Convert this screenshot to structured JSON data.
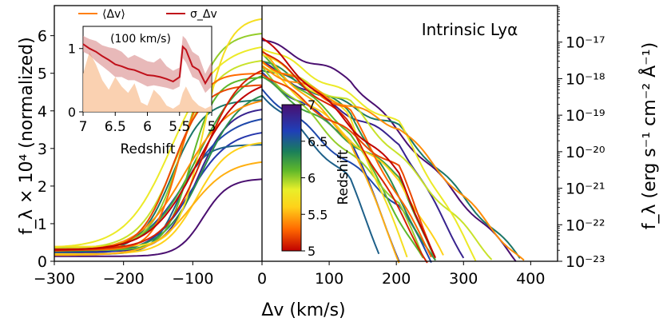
{
  "chart_data": {
    "type": "line",
    "annotation": "Intrinsic Lyα",
    "x_axis": {
      "label": "Δv  (km/s)",
      "left_range": [
        -300,
        0
      ],
      "right_range": [
        0,
        440
      ],
      "ticks": [
        "−300",
        "−200",
        "−100",
        "0",
        "100",
        "200",
        "300",
        "400"
      ]
    },
    "y_axis_left": {
      "label": "f_λ × 10⁴  (normalized)",
      "range": [
        0,
        6.8
      ],
      "ticks": [
        "0",
        "1",
        "2",
        "3",
        "4",
        "5",
        "6"
      ]
    },
    "y_axis_right": {
      "label": "f_λ  (erg s⁻¹ cm⁻² Å⁻¹)",
      "scale": "log",
      "range": [
        1e-23,
        1e-16
      ],
      "ticks": [
        "10⁻¹⁷",
        "10⁻¹⁸",
        "10⁻¹⁹",
        "10⁻²⁰",
        "10⁻²¹",
        "10⁻²²",
        "10⁻²³"
      ]
    },
    "colorbar": {
      "label": "Redshift",
      "range": [
        5,
        7
      ],
      "colormap": "purple-blue-green-yellow-orange-red",
      "ticks": [
        "7",
        "6.5",
        "6",
        "5.5",
        "5"
      ]
    },
    "series_redshifts": [
      7.0,
      6.85,
      6.7,
      6.6,
      6.5,
      6.4,
      6.3,
      6.2,
      6.1,
      6.0,
      5.9,
      5.8,
      5.7,
      5.6,
      5.5,
      5.4,
      5.3,
      5.2,
      5.1,
      5.0
    ],
    "series_peaks_normalized": [
      2.2,
      4.1,
      3.5,
      3.9,
      3.1,
      4.3,
      4.6,
      5.2,
      4.9,
      6.1,
      5.4,
      5.8,
      6.5,
      3.2,
      2.7,
      4.4,
      5.0,
      4.7,
      5.3,
      4.9
    ],
    "series_peaks_log_flux": [
      -16.95,
      -17.6,
      -17.9,
      -18.3,
      -18.4,
      -17.7,
      -17.5,
      -18.0,
      -17.4,
      -17.7,
      -17.6,
      -17.1,
      -17.3,
      -17.6,
      -17.3,
      -17.7,
      -17.5,
      -17.8,
      -17.2,
      -16.9
    ],
    "inset": {
      "x_label": "Redshift",
      "x_range": [
        7,
        5
      ],
      "x_ticks": [
        "7",
        "6.5",
        "6",
        "5.5",
        "5"
      ],
      "y_range": [
        0,
        1.35
      ],
      "y_ticks": [
        "0",
        "1"
      ],
      "unit_label": "(100 km/s)",
      "legend": [
        {
          "name": "⟨Δv⟩",
          "color": "#ff7f0e"
        },
        {
          "name": "σ_Δv",
          "color": "#c0101a"
        }
      ],
      "redshift": [
        7.0,
        6.9,
        6.8,
        6.7,
        6.6,
        6.5,
        6.4,
        6.3,
        6.2,
        6.1,
        6.0,
        5.9,
        5.8,
        5.7,
        5.6,
        5.5,
        5.45,
        5.4,
        5.3,
        5.2,
        5.1,
        5.0
      ],
      "mean_dv": [
        0.6,
        0.95,
        0.75,
        0.5,
        0.35,
        0.55,
        0.4,
        0.3,
        0.45,
        0.15,
        0.1,
        0.35,
        0.25,
        0.1,
        0.05,
        0.12,
        0.3,
        0.4,
        0.2,
        0.1,
        0.05,
        0.1
      ],
      "sigma_dv": [
        1.07,
        1.0,
        0.95,
        0.88,
        0.82,
        0.75,
        0.72,
        0.68,
        0.66,
        0.62,
        0.58,
        0.57,
        0.55,
        0.52,
        0.48,
        0.55,
        1.03,
        0.98,
        0.72,
        0.66,
        0.45,
        0.62
      ],
      "sigma_band_low": [
        0.95,
        0.9,
        0.8,
        0.72,
        0.64,
        0.55,
        0.55,
        0.5,
        0.5,
        0.45,
        0.4,
        0.42,
        0.4,
        0.38,
        0.35,
        0.4,
        0.85,
        0.78,
        0.55,
        0.5,
        0.3,
        0.4
      ],
      "sigma_band_high": [
        1.2,
        1.15,
        1.12,
        1.05,
        1.02,
        1.0,
        0.95,
        0.85,
        0.9,
        0.85,
        0.8,
        0.78,
        0.85,
        0.72,
        0.65,
        0.7,
        1.2,
        1.15,
        0.95,
        0.88,
        0.6,
        0.8
      ]
    }
  }
}
